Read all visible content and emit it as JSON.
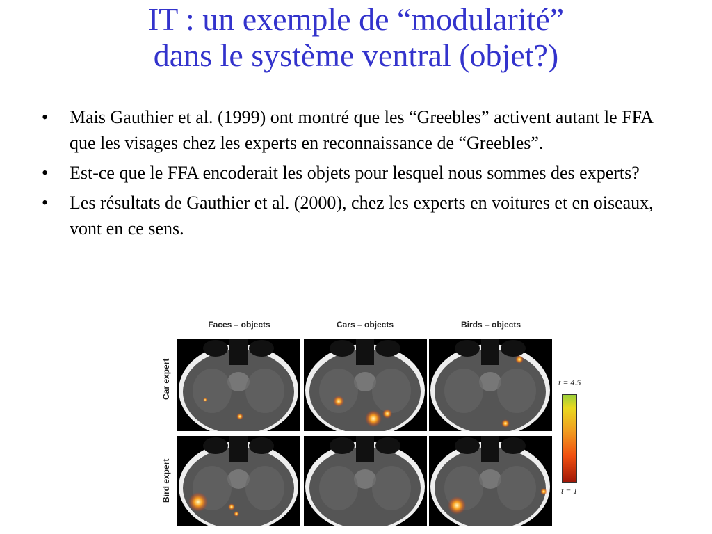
{
  "title": [
    "IT : un exemple de “modularité”",
    "dans le système ventral (objet?)"
  ],
  "bullets": [
    "Mais Gauthier et al. (1999) ont montré que les “Greebles” activent autant le FFA que les visages chez les experts en reconnaissance de “Greebles”.",
    "Est-ce que le FFA encoderait les objets pour lesquel nous sommes des experts?",
    "Les résultats de Gauthier et al. (2000), chez les experts en voitures et en oiseaux, vont en ce sens."
  ],
  "bullet_symbol": "•",
  "figure": {
    "columns": [
      "Faces – objects",
      "Cars – objects",
      "Birds – objects"
    ],
    "rows": [
      "Car expert",
      "Bird expert"
    ],
    "colorbar": {
      "max_label": "t = 4.5",
      "min_label": "t = 1",
      "colors": [
        "#9ccf3a",
        "#e8d820",
        "#f0a020",
        "#f05010",
        "#a01808"
      ]
    }
  }
}
